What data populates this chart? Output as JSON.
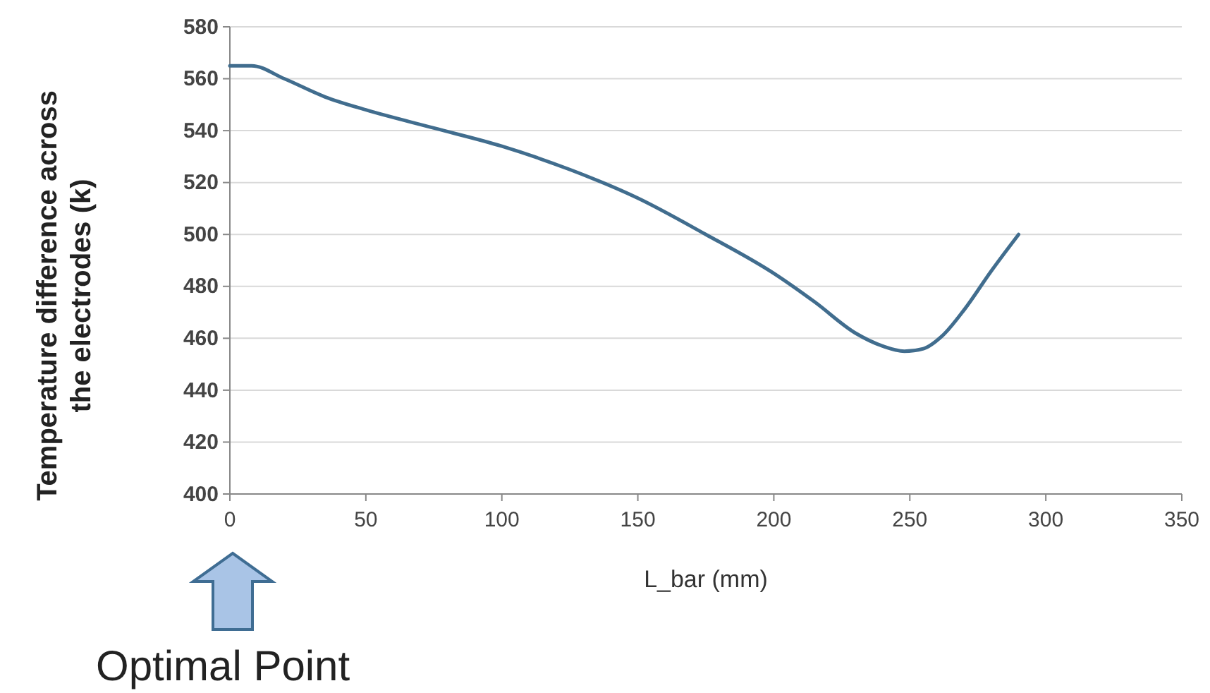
{
  "chart_data": {
    "type": "line",
    "xlabel": "L_bar (mm)",
    "ylabel": "Temperature difference across the electrodes (k)",
    "xlim": [
      0,
      350
    ],
    "xticks": [
      0,
      50,
      100,
      150,
      200,
      250,
      300,
      350
    ],
    "ylim": [
      400,
      580
    ],
    "yticks": [
      400,
      420,
      440,
      460,
      480,
      500,
      520,
      540,
      560,
      580
    ],
    "grid": "y",
    "marker": "none",
    "series": [
      {
        "color": "#416d8e",
        "x": [
          0,
          8,
          20,
          35,
          50,
          75,
          100,
          125,
          150,
          175,
          200,
          215,
          230,
          240,
          248,
          255,
          262,
          270,
          280,
          290
        ],
        "values": [
          565,
          565,
          560,
          553,
          548,
          541,
          534,
          525,
          514,
          500,
          485,
          474,
          462,
          457,
          455,
          456,
          461,
          471,
          486,
          500
        ]
      }
    ],
    "annotations": [
      "Optimal Point"
    ]
  }
}
